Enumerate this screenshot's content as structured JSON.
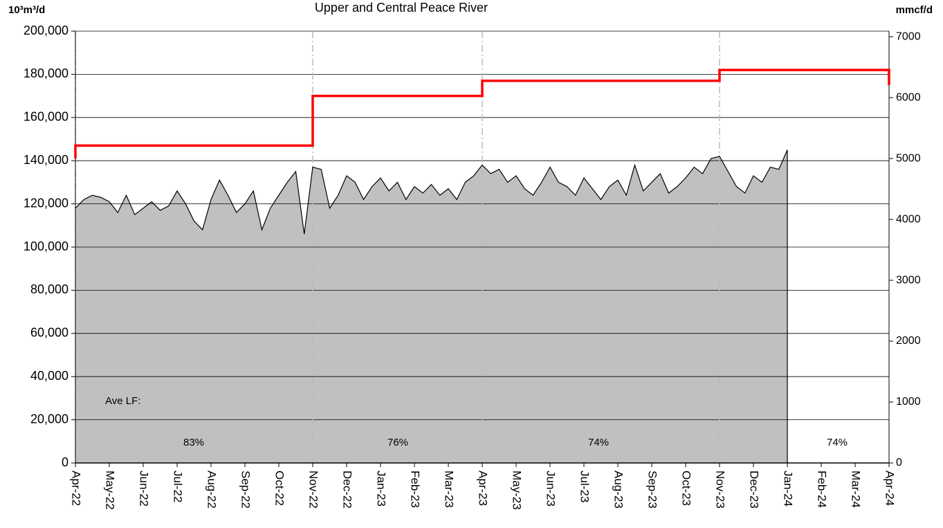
{
  "chart_data": {
    "type": "area",
    "title": "Upper and Central Peace River",
    "y_label": "10³m³/d",
    "y2_label": "mmcf/d",
    "xlim": [
      0,
      24
    ],
    "xticks": [
      {
        "value": 0,
        "label": "Apr-22"
      },
      {
        "value": 1,
        "label": "May-22"
      },
      {
        "value": 2,
        "label": "Jun-22"
      },
      {
        "value": 3,
        "label": "Jul-22"
      },
      {
        "value": 4,
        "label": "Aug-22"
      },
      {
        "value": 5,
        "label": "Sep-22"
      },
      {
        "value": 6,
        "label": "Oct-22"
      },
      {
        "value": 7,
        "label": "Nov-22"
      },
      {
        "value": 8,
        "label": "Dec-22"
      },
      {
        "value": 9,
        "label": "Jan-23"
      },
      {
        "value": 10,
        "label": "Feb-23"
      },
      {
        "value": 11,
        "label": "Mar-23"
      },
      {
        "value": 12,
        "label": "Apr-23"
      },
      {
        "value": 13,
        "label": "May-23"
      },
      {
        "value": 14,
        "label": "Jun-23"
      },
      {
        "value": 15,
        "label": "Jul-23"
      },
      {
        "value": 16,
        "label": "Aug-23"
      },
      {
        "value": 17,
        "label": "Sep-23"
      },
      {
        "value": 18,
        "label": "Oct-23"
      },
      {
        "value": 19,
        "label": "Nov-23"
      },
      {
        "value": 20,
        "label": "Dec-23"
      },
      {
        "value": 21,
        "label": "Jan-24"
      },
      {
        "value": 22,
        "label": "Feb-24"
      },
      {
        "value": 23,
        "label": "Mar-24"
      },
      {
        "value": 24,
        "label": "Apr-24"
      }
    ],
    "ylim": [
      0,
      200000
    ],
    "yticks": [
      0,
      {
        "value": 20000,
        "label": "20,000"
      },
      {
        "value": 40000,
        "label": "40,000"
      },
      {
        "value": 60000,
        "label": "60,000"
      },
      {
        "value": 80000,
        "label": "80,000"
      },
      {
        "value": 100000,
        "label": "100,000"
      },
      {
        "value": 120000,
        "label": "120,000"
      },
      {
        "value": 140000,
        "label": "140,000"
      },
      {
        "value": 160000,
        "label": "160,000"
      },
      {
        "value": 180000,
        "label": "180,000"
      },
      {
        "value": 200000,
        "label": "200,000"
      }
    ],
    "y2lim": [
      0,
      7092
    ],
    "y2ticks": [
      0,
      1000,
      2000,
      3000,
      4000,
      5000,
      6000,
      7000
    ],
    "grid": true,
    "vlines": [
      0,
      7,
      12,
      19
    ],
    "series": [
      {
        "type": "area",
        "color": "#c0c0c0",
        "line_color": "#000000",
        "x": [
          0,
          0.25,
          0.5,
          0.75,
          1,
          1.25,
          1.5,
          1.75,
          2,
          2.25,
          2.5,
          2.75,
          3,
          3.25,
          3.5,
          3.75,
          4,
          4.25,
          4.5,
          4.75,
          5,
          5.25,
          5.5,
          5.75,
          6,
          6.25,
          6.5,
          6.75,
          7,
          7.25,
          7.5,
          7.75,
          8,
          8.25,
          8.5,
          8.75,
          9,
          9.25,
          9.5,
          9.75,
          10,
          10.25,
          10.5,
          10.75,
          11,
          11.25,
          11.5,
          11.75,
          12,
          12.25,
          12.5,
          12.75,
          13,
          13.25,
          13.5,
          13.75,
          14,
          14.25,
          14.5,
          14.75,
          15,
          15.25,
          15.5,
          15.75,
          16,
          16.25,
          16.5,
          16.75,
          17,
          17.25,
          17.5,
          17.75,
          18,
          18.25,
          18.5,
          18.75,
          19,
          19.25,
          19.5,
          19.75,
          20,
          20.25,
          20.5,
          20.75,
          21
        ],
        "values": [
          118000,
          122000,
          124000,
          123000,
          121000,
          116000,
          124000,
          115000,
          118000,
          121000,
          117000,
          119000,
          126000,
          120000,
          112000,
          108000,
          122000,
          131000,
          124000,
          116000,
          120000,
          126000,
          108000,
          118000,
          124000,
          130000,
          135000,
          106000,
          137000,
          136000,
          118000,
          124000,
          133000,
          130000,
          122000,
          128000,
          132000,
          126000,
          130000,
          122000,
          128000,
          125000,
          129000,
          124000,
          127000,
          122000,
          130000,
          133000,
          138000,
          134000,
          136000,
          130000,
          133000,
          127000,
          124000,
          130000,
          137000,
          130000,
          128000,
          124000,
          132000,
          127000,
          122000,
          128000,
          131000,
          124000,
          138000,
          126000,
          130000,
          134000,
          125000,
          128000,
          132000,
          137000,
          134000,
          141000,
          142000,
          135000,
          128000,
          125000,
          133000,
          130000,
          137000,
          136000,
          145000
        ]
      },
      {
        "type": "line",
        "color": "#ff0000",
        "x": [
          0,
          0,
          7,
          7,
          12,
          12,
          19,
          19,
          24,
          24
        ],
        "values": [
          141000,
          147000,
          147000,
          170000,
          170000,
          177000,
          177000,
          182000,
          182000,
          175000
        ]
      }
    ],
    "annotations": [
      "Ave LF:",
      "83%",
      "76%",
      "74%",
      "74%"
    ]
  }
}
